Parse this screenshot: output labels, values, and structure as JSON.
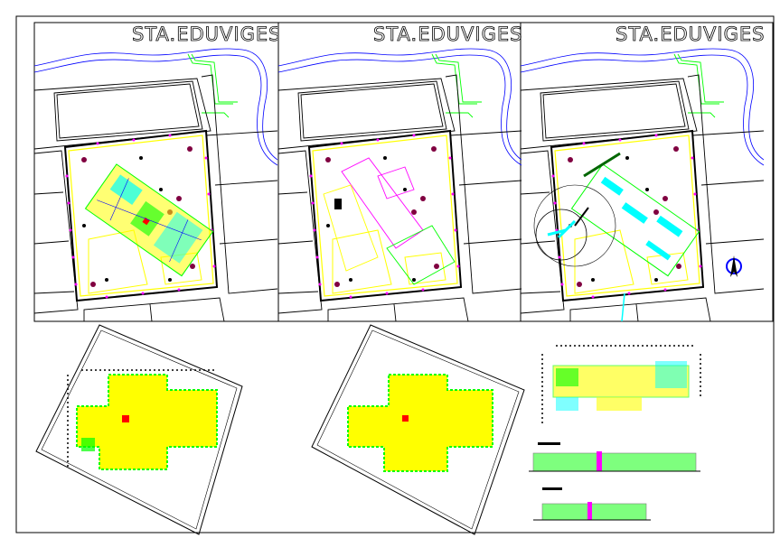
{
  "sheet": {
    "panels": [
      {
        "title": "STA.EDUVIGES",
        "variant": "full-site"
      },
      {
        "title": "STA.EDUVIGES",
        "variant": "outline"
      },
      {
        "title": "STA.EDUVIGES",
        "variant": "services"
      }
    ],
    "colors": {
      "river": "#0000ff",
      "path": "#00ff00",
      "site_boundary": "#ffff00",
      "markers": "#ff00ff",
      "services": "#00ffff",
      "trees": "#800040",
      "lines": "#000000"
    },
    "bottom_drawings": [
      "floor-plan-1",
      "floor-plan-2",
      "plan-and-elevations"
    ]
  }
}
